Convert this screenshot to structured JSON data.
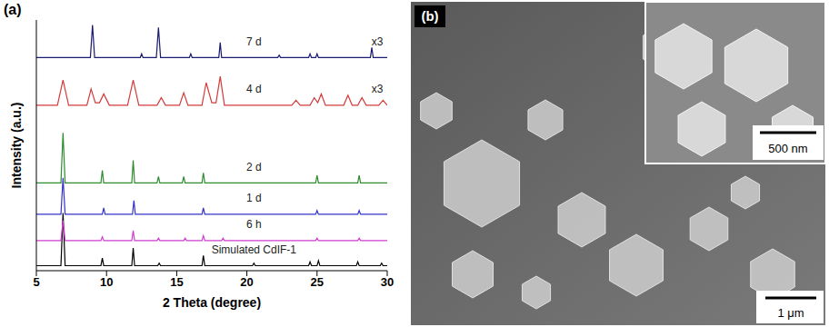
{
  "chart_data": {
    "type": "line",
    "panel_label": "(a)",
    "x_label": "2 Theta (degree)",
    "y_label": "Intensity (a.u.)",
    "xlim": [
      5,
      30
    ],
    "xticks": [
      5,
      10,
      15,
      20,
      25,
      30
    ],
    "ylim": [
      0,
      100
    ],
    "tick_labels": "x",
    "grid": false,
    "series": [
      {
        "name": "Simulated CdIF-1",
        "color": "#000000",
        "x": [
          5,
          6.75,
          6.9,
          7.05,
          9.6,
          9.7,
          9.8,
          11.8,
          11.9,
          12.0,
          13.65,
          13.75,
          13.85,
          16.8,
          16.9,
          17.0,
          20.4,
          20.5,
          20.6,
          24.4,
          24.5,
          24.6,
          25.0,
          25.1,
          25.2,
          27.8,
          27.9,
          28.0,
          29.5,
          29.6,
          29.7,
          30
        ],
        "values": [
          2,
          2,
          23,
          2,
          2,
          5,
          2,
          2,
          9,
          2,
          2,
          3,
          2,
          2,
          6,
          2,
          2,
          3,
          2,
          2,
          3.5,
          2,
          2,
          4,
          2,
          2,
          3.5,
          2,
          2,
          3,
          2,
          2
        ]
      },
      {
        "name": "6 h",
        "color": "#d23cd2",
        "x": [
          5,
          6.75,
          6.9,
          7.05,
          9.6,
          9.7,
          9.8,
          11.8,
          11.9,
          12.0,
          13.6,
          13.7,
          13.8,
          15.5,
          15.6,
          15.7,
          16.8,
          16.9,
          17.0,
          18.2,
          18.3,
          18.4,
          24.9,
          25.0,
          25.1,
          27.9,
          28.0,
          28.1,
          30
        ],
        "values": [
          12,
          12,
          20,
          12,
          12,
          13.5,
          12,
          12,
          16,
          12,
          12,
          13,
          12,
          12,
          13,
          12,
          12,
          14,
          12,
          12,
          13,
          12,
          12,
          13,
          12,
          12,
          13,
          12,
          12
        ]
      },
      {
        "name": "1 d",
        "color": "#3333cc",
        "x": [
          5,
          6.75,
          6.9,
          7.05,
          9.7,
          9.8,
          9.9,
          11.85,
          11.95,
          12.05,
          16.8,
          16.9,
          17.0,
          24.9,
          25.0,
          25.1,
          27.9,
          28.0,
          28.1,
          30
        ],
        "values": [
          22.5,
          22.5,
          37,
          22.5,
          22.5,
          25,
          22.5,
          22.5,
          28,
          22.5,
          22.5,
          25,
          22.5,
          22.5,
          24,
          22.5,
          22.5,
          24,
          22.5,
          22.5
        ]
      },
      {
        "name": "2 d",
        "color": "#2e8b2e",
        "x": [
          5,
          6.75,
          6.9,
          7.05,
          9.6,
          9.7,
          9.8,
          11.8,
          11.9,
          12.0,
          13.6,
          13.7,
          13.8,
          15.4,
          15.5,
          15.6,
          16.8,
          16.9,
          17.0,
          24.9,
          25.0,
          25.1,
          27.9,
          28.0,
          28.1,
          30
        ],
        "values": [
          35,
          35,
          55,
          35,
          35,
          40,
          35,
          35,
          44,
          35,
          35,
          37.5,
          35,
          35,
          37.5,
          35,
          35,
          39,
          35,
          35,
          38,
          35,
          35,
          38,
          35,
          35
        ]
      },
      {
        "name": "4 d",
        "color": "#d43a3a",
        "annotation": "x3",
        "x": [
          5,
          6.5,
          6.9,
          7.3,
          8.6,
          8.9,
          9.2,
          9.5,
          9.8,
          10.2,
          11.5,
          11.9,
          12.3,
          13.6,
          13.9,
          14.2,
          15.2,
          15.5,
          15.8,
          16.8,
          17.1,
          17.5,
          17.8,
          18.1,
          18.4,
          23.2,
          23.5,
          23.8,
          24.5,
          24.8,
          25.05,
          25.3,
          25.6,
          26.9,
          27.2,
          27.5,
          27.9,
          28.2,
          28.5,
          29.4,
          29.7,
          30
        ],
        "values": [
          66,
          66,
          76,
          66,
          66,
          72.5,
          67,
          67,
          70.5,
          66,
          66,
          76,
          66,
          66,
          69,
          66,
          66,
          71,
          66,
          66,
          75,
          67,
          67,
          77.5,
          66,
          66,
          68,
          66,
          66,
          69,
          67,
          70.5,
          66,
          66,
          70,
          66,
          66,
          69,
          66,
          66,
          68,
          66
        ]
      },
      {
        "name": "7 d",
        "color": "#1a1a6e",
        "annotation": "x3",
        "x": [
          5,
          8.85,
          9.0,
          9.15,
          12.4,
          12.5,
          12.6,
          13.55,
          13.7,
          13.85,
          15.9,
          16.0,
          16.1,
          18.0,
          18.1,
          18.2,
          22.2,
          22.3,
          22.4,
          24.4,
          24.5,
          24.6,
          24.9,
          25.0,
          25.1,
          28.8,
          28.9,
          29.0,
          30
        ],
        "values": [
          85,
          85,
          98,
          85,
          85,
          86.5,
          85,
          85,
          97,
          85,
          85,
          86.5,
          85,
          85,
          91,
          85,
          85,
          86,
          85,
          85,
          86.5,
          85,
          85,
          86.5,
          85,
          85,
          89,
          85,
          85
        ]
      }
    ]
  },
  "image_panel": {
    "panel_label": "(b)",
    "scale_bar": "1 μm",
    "inset_scale_bar": "500 nm"
  }
}
